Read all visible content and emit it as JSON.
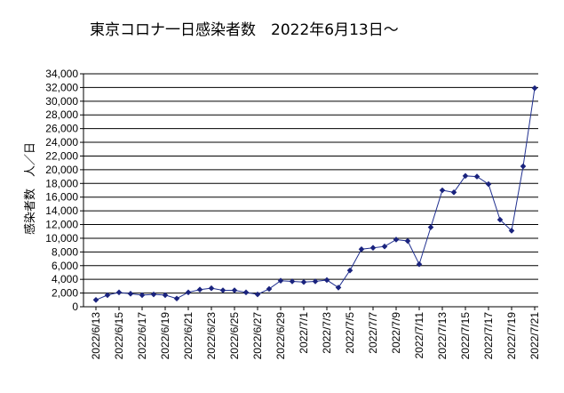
{
  "chart_data": {
    "type": "line",
    "title": "東京コロナ一日感染者数　2022年6月13日～",
    "ylabel": "感染者数　人／日",
    "xlabel": "",
    "ylim": [
      0,
      34000
    ],
    "ytick_step": 2000,
    "grid": true,
    "legend": "none",
    "yticks": [
      "0",
      "2,000",
      "4,000",
      "6,000",
      "8,000",
      "10,000",
      "12,000",
      "14,000",
      "16,000",
      "18,000",
      "20,000",
      "22,000",
      "24,000",
      "26,000",
      "28,000",
      "30,000",
      "32,000",
      "34,000"
    ],
    "x_tick_labels": [
      "2022/6/13",
      "2022/6/15",
      "2022/6/17",
      "2022/6/19",
      "2022/6/21",
      "2022/6/23",
      "2022/6/25",
      "2022/6/27",
      "2022/6/29",
      "2022/7/1",
      "2022/7/3",
      "2022/7/5",
      "2022/7/7",
      "2022/7/9",
      "2022/7/11",
      "2022/7/13",
      "2022/7/15",
      "2022/7/17",
      "2022/7/19",
      "2022/7/21"
    ],
    "x": [
      "2022/6/13",
      "2022/6/14",
      "2022/6/15",
      "2022/6/16",
      "2022/6/17",
      "2022/6/18",
      "2022/6/19",
      "2022/6/20",
      "2022/6/21",
      "2022/6/22",
      "2022/6/23",
      "2022/6/24",
      "2022/6/25",
      "2022/6/26",
      "2022/6/27",
      "2022/6/28",
      "2022/6/29",
      "2022/6/30",
      "2022/7/1",
      "2022/7/2",
      "2022/7/3",
      "2022/7/4",
      "2022/7/5",
      "2022/7/6",
      "2022/7/7",
      "2022/7/8",
      "2022/7/9",
      "2022/7/10",
      "2022/7/11",
      "2022/7/12",
      "2022/7/13",
      "2022/7/14",
      "2022/7/15",
      "2022/7/16",
      "2022/7/17",
      "2022/7/18",
      "2022/7/19",
      "2022/7/20",
      "2022/7/21"
    ],
    "series": [
      {
        "values": [
          1000,
          1700,
          2100,
          1900,
          1700,
          1800,
          1700,
          1200,
          2100,
          2500,
          2700,
          2400,
          2400,
          2100,
          1800,
          2600,
          3800,
          3700,
          3600,
          3700,
          3900,
          2800,
          5300,
          8400,
          8600,
          8800,
          9800,
          9600,
          6200,
          11600,
          17000,
          16700,
          19100,
          19000,
          17900,
          12700,
          11100,
          20500,
          31900
        ],
        "color": "#1a237e"
      }
    ]
  }
}
